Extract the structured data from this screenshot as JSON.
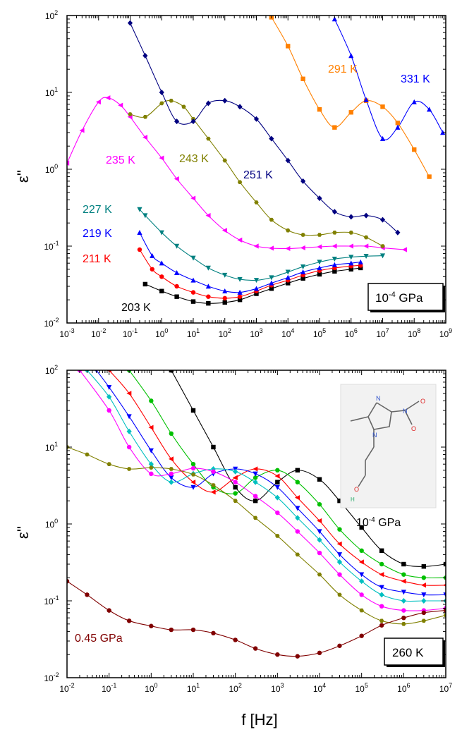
{
  "chart_data": [
    {
      "type": "scatter",
      "xscale": "log",
      "yscale": "log",
      "xlim": [
        0.001,
        1000000000
      ],
      "ylim": [
        0.01,
        100
      ],
      "ylabel": "ε''",
      "xlabel": "",
      "grid": false,
      "x_tick_labels": [
        {
          "b": "10",
          "e": "-3"
        },
        {
          "b": "10",
          "e": "-2"
        },
        {
          "b": "10",
          "e": "-1"
        },
        {
          "b": "10",
          "e": "0"
        },
        {
          "b": "10",
          "e": "1"
        },
        {
          "b": "10",
          "e": "2"
        },
        {
          "b": "10",
          "e": "3"
        },
        {
          "b": "10",
          "e": "4"
        },
        {
          "b": "10",
          "e": "5"
        },
        {
          "b": "10",
          "e": "6"
        },
        {
          "b": "10",
          "e": "7"
        },
        {
          "b": "10",
          "e": "8"
        },
        {
          "b": "10",
          "e": "9"
        }
      ],
      "y_tick_labels": [
        {
          "b": "10",
          "e": "-2"
        },
        {
          "b": "10",
          "e": "-1"
        },
        {
          "b": "10",
          "e": "0"
        },
        {
          "b": "10",
          "e": "1"
        },
        {
          "b": "10",
          "e": "2"
        }
      ],
      "box_label": {
        "base": "10",
        "exp": "-4",
        "rest": " GPa"
      },
      "series": [
        {
          "name": "203 K",
          "color": "#000000",
          "marker": "square",
          "x": [
            0.3,
            1,
            3,
            10,
            30,
            100,
            300,
            1000,
            3000,
            10000,
            30000,
            100000,
            300000,
            1000000,
            2000000
          ],
          "y": [
            0.032,
            0.026,
            0.022,
            0.019,
            0.018,
            0.0185,
            0.02,
            0.024,
            0.028,
            0.033,
            0.038,
            0.043,
            0.047,
            0.05,
            0.052
          ]
        },
        {
          "name": "211 K",
          "color": "#ff0000",
          "marker": "circle",
          "x": [
            0.2,
            0.5,
            1,
            3,
            10,
            30,
            100,
            300,
            1000,
            3000,
            10000,
            30000,
            100000,
            300000,
            1000000,
            2000000
          ],
          "y": [
            0.09,
            0.05,
            0.04,
            0.03,
            0.025,
            0.022,
            0.021,
            0.022,
            0.026,
            0.031,
            0.036,
            0.042,
            0.048,
            0.052,
            0.055,
            0.056
          ]
        },
        {
          "name": "219 K",
          "color": "#0000ff",
          "marker": "triangle",
          "x": [
            0.2,
            0.5,
            1,
            3,
            10,
            30,
            100,
            300,
            1000,
            3000,
            10000,
            30000,
            100000,
            300000,
            1000000,
            2000000
          ],
          "y": [
            0.15,
            0.075,
            0.06,
            0.045,
            0.036,
            0.03,
            0.026,
            0.025,
            0.028,
            0.033,
            0.039,
            0.046,
            0.052,
            0.057,
            0.06,
            0.062
          ]
        },
        {
          "name": "227 K",
          "color": "#008080",
          "marker": "triangle-down",
          "x": [
            0.2,
            0.3,
            1,
            3,
            10,
            30,
            100,
            300,
            1000,
            3000,
            10000,
            30000,
            100000,
            300000,
            1000000,
            3000000,
            10000000
          ],
          "y": [
            0.3,
            0.25,
            0.15,
            0.1,
            0.07,
            0.052,
            0.042,
            0.037,
            0.036,
            0.039,
            0.046,
            0.054,
            0.062,
            0.068,
            0.072,
            0.074,
            0.075
          ]
        },
        {
          "name": "235 K",
          "color": "#ff00ff",
          "marker": "triangle-left",
          "x": [
            0.001,
            0.003,
            0.01,
            0.02,
            0.05,
            0.1,
            0.3,
            1,
            3,
            10,
            30,
            100,
            300,
            1000,
            3000,
            10000,
            30000,
            100000,
            300000,
            1000000,
            3000000,
            10000000,
            50000000
          ],
          "y": [
            1.2,
            3.2,
            7.5,
            8.5,
            6.8,
            4.8,
            2.6,
            1.4,
            0.75,
            0.42,
            0.25,
            0.16,
            0.12,
            0.1,
            0.094,
            0.093,
            0.095,
            0.098,
            0.1,
            0.1,
            0.1,
            0.095,
            0.09
          ]
        },
        {
          "name": "243 K",
          "color": "#808000",
          "marker": "hexagon",
          "x": [
            0.1,
            0.3,
            1,
            2,
            5,
            10,
            30,
            100,
            300,
            1000,
            3000,
            10000,
            30000,
            100000,
            300000,
            1000000,
            3000000,
            10000000
          ],
          "y": [
            5.2,
            4.8,
            7.2,
            7.8,
            6.5,
            4.5,
            2.5,
            1.3,
            0.68,
            0.37,
            0.22,
            0.16,
            0.14,
            0.14,
            0.15,
            0.15,
            0.13,
            0.1
          ]
        },
        {
          "name": "251 K",
          "color": "#000080",
          "marker": "diamond",
          "x": [
            0.1,
            0.3,
            1,
            3,
            10,
            30,
            100,
            300,
            1000,
            3000,
            10000,
            30000,
            100000,
            300000,
            1000000,
            3000000,
            10000000,
            30000000
          ],
          "y": [
            80,
            30,
            10,
            4.2,
            4.2,
            7.2,
            7.8,
            6.5,
            4.5,
            2.5,
            1.3,
            0.7,
            0.42,
            0.28,
            0.24,
            0.25,
            0.22,
            0.15
          ]
        },
        {
          "name": "291 K",
          "color": "#ff8000",
          "marker": "square",
          "x": [
            3000,
            10000,
            30000,
            100000,
            300000,
            1000000,
            3000000,
            10000000,
            30000000,
            100000000,
            300000000
          ],
          "y": [
            95,
            40,
            15,
            6,
            3.5,
            5.5,
            7.8,
            6.5,
            4,
            1.8,
            0.8
          ]
        },
        {
          "name": "331 K",
          "color": "#0000ff",
          "marker": "triangle",
          "x": [
            300000,
            1000000,
            3000000,
            10000000,
            30000000,
            100000000,
            300000000,
            800000000
          ],
          "y": [
            90,
            30,
            8,
            2.5,
            3.5,
            7.5,
            6,
            3
          ]
        }
      ]
    },
    {
      "type": "scatter",
      "xscale": "log",
      "yscale": "log",
      "xlim": [
        0.01,
        10000000
      ],
      "ylim": [
        0.01,
        100
      ],
      "ylabel": "ε''",
      "xlabel": "f [Hz]",
      "grid": false,
      "x_tick_labels": [
        {
          "b": "10",
          "e": "-2"
        },
        {
          "b": "10",
          "e": "-1"
        },
        {
          "b": "10",
          "e": "0"
        },
        {
          "b": "10",
          "e": "1"
        },
        {
          "b": "10",
          "e": "2"
        },
        {
          "b": "10",
          "e": "3"
        },
        {
          "b": "10",
          "e": "4"
        },
        {
          "b": "10",
          "e": "5"
        },
        {
          "b": "10",
          "e": "6"
        },
        {
          "b": "10",
          "e": "7"
        }
      ],
      "y_tick_labels": [
        {
          "b": "10",
          "e": "-2"
        },
        {
          "b": "10",
          "e": "-1"
        },
        {
          "b": "10",
          "e": "0"
        },
        {
          "b": "10",
          "e": "1"
        },
        {
          "b": "10",
          "e": "2"
        }
      ],
      "box_label": "260 K",
      "annotations": [
        {
          "text_base": "10",
          "text_exp": "-4",
          "text_rest": " GPa",
          "color": "#000000"
        },
        {
          "text": "0.45 GPa",
          "color": "#800000"
        }
      ],
      "series": [
        {
          "name": "10-4 GPa",
          "color": "#000000",
          "marker": "square",
          "x": [
            3,
            10,
            30,
            100,
            300,
            1000,
            3000,
            10000,
            30000,
            100000,
            300000,
            1000000,
            3000000,
            10000000
          ],
          "y": [
            100,
            30,
            10,
            3,
            2,
            3.5,
            5,
            3.8,
            2,
            0.9,
            0.45,
            0.3,
            0.28,
            0.3
          ]
        },
        {
          "name": "",
          "color": "#00c000",
          "marker": "circle",
          "x": [
            0.3,
            1,
            3,
            10,
            30,
            100,
            300,
            1000,
            3000,
            10000,
            30000,
            100000,
            300000,
            1000000,
            3000000,
            10000000
          ],
          "y": [
            100,
            40,
            15,
            6,
            3,
            2.5,
            4,
            5,
            3.5,
            1.8,
            0.85,
            0.45,
            0.3,
            0.22,
            0.2,
            0.2
          ]
        },
        {
          "name": "",
          "color": "#ff0000",
          "marker": "triangle-left",
          "x": [
            0.1,
            0.3,
            1,
            3,
            10,
            30,
            100,
            300,
            1000,
            3000,
            10000,
            30000,
            100000,
            300000,
            1000000,
            3000000,
            10000000
          ],
          "y": [
            100,
            50,
            18,
            7,
            3.5,
            2.6,
            4,
            5.2,
            4.2,
            2.2,
            1.1,
            0.55,
            0.32,
            0.22,
            0.18,
            0.16,
            0.16
          ]
        },
        {
          "name": "",
          "color": "#0000ff",
          "marker": "triangle-down",
          "x": [
            0.05,
            0.1,
            0.3,
            1,
            3,
            10,
            30,
            100,
            300,
            1000,
            3000,
            10000,
            30000,
            100000,
            300000,
            1000000,
            3000000,
            10000000
          ],
          "y": [
            100,
            60,
            25,
            9,
            4,
            3,
            4.5,
            5.2,
            4.5,
            3,
            1.6,
            0.8,
            0.4,
            0.22,
            0.15,
            0.13,
            0.12,
            0.12
          ]
        },
        {
          "name": "",
          "color": "#00c0c0",
          "marker": "diamond",
          "x": [
            0.03,
            0.1,
            0.3,
            1,
            3,
            10,
            30,
            100,
            300,
            1000,
            3000,
            10000,
            30000,
            100000,
            300000,
            1000000,
            3000000,
            10000000
          ],
          "y": [
            100,
            45,
            16,
            6,
            3.5,
            4.5,
            5.2,
            4.8,
            3.5,
            2.2,
            1.2,
            0.62,
            0.32,
            0.18,
            0.12,
            0.1,
            0.1,
            0.1
          ]
        },
        {
          "name": "",
          "color": "#ff00ff",
          "marker": "circle",
          "x": [
            0.02,
            0.1,
            0.3,
            1,
            3,
            10,
            30,
            100,
            300,
            1000,
            3000,
            10000,
            30000,
            100000,
            300000,
            1000000,
            3000000,
            10000000
          ],
          "y": [
            100,
            30,
            10,
            4.5,
            4.5,
            5.3,
            4.8,
            3.5,
            2.3,
            1.4,
            0.8,
            0.42,
            0.22,
            0.12,
            0.085,
            0.075,
            0.075,
            0.08
          ]
        },
        {
          "name": "",
          "color": "#808000",
          "marker": "hexagon",
          "x": [
            0.01,
            0.03,
            0.1,
            0.3,
            1,
            3,
            10,
            30,
            100,
            300,
            1000,
            3000,
            10000,
            30000,
            100000,
            300000,
            1000000,
            3000000,
            10000000
          ],
          "y": [
            10,
            8,
            6,
            5.2,
            5.4,
            5.2,
            4.4,
            3.2,
            2,
            1.2,
            0.7,
            0.4,
            0.22,
            0.12,
            0.075,
            0.055,
            0.05,
            0.055,
            0.065
          ]
        },
        {
          "name": "0.45 GPa",
          "color": "#800000",
          "marker": "circle",
          "x": [
            0.01,
            0.03,
            0.1,
            0.3,
            1,
            3,
            10,
            30,
            100,
            300,
            1000,
            3000,
            10000,
            30000,
            100000,
            300000,
            1000000,
            3000000,
            10000000
          ],
          "y": [
            0.18,
            0.12,
            0.075,
            0.055,
            0.047,
            0.042,
            0.042,
            0.038,
            0.031,
            0.024,
            0.02,
            0.019,
            0.021,
            0.026,
            0.035,
            0.048,
            0.06,
            0.07,
            0.075
          ]
        }
      ]
    }
  ]
}
